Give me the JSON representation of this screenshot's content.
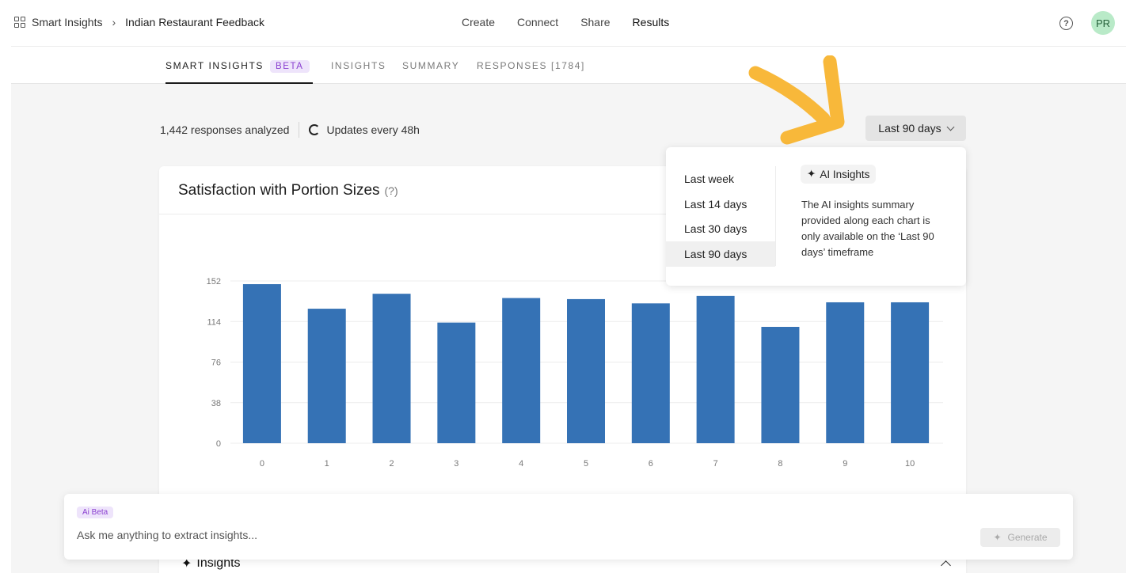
{
  "breadcrumb": {
    "root": "Smart Insights",
    "current": "Indian Restaurant Feedback"
  },
  "topnav": [
    "Create",
    "Connect",
    "Share",
    "Results"
  ],
  "user": {
    "initials": "PR"
  },
  "subtabs": {
    "smart": "SMART INSIGHTS",
    "beta": "BETA",
    "insights": "INSIGHTS",
    "summary": "SUMMARY",
    "responses": "RESPONSES [1784]"
  },
  "stats": {
    "analyzed": "1,442 responses analyzed",
    "updates": "Updates every 48h"
  },
  "range": {
    "selected": "Last 90 days",
    "options": [
      "Last week",
      "Last 14 days",
      "Last 30 days",
      "Last 90 days"
    ]
  },
  "ai_popup": {
    "chip": "AI Insights",
    "text": "The AI insights summary provided along each chart is only available on the ‘Last 90 days’ timeframe"
  },
  "card": {
    "title": "Satisfaction with Portion Sizes",
    "help": "(?)"
  },
  "chart_data": {
    "type": "bar",
    "categories": [
      "0",
      "1",
      "2",
      "3",
      "4",
      "5",
      "6",
      "7",
      "8",
      "9",
      "10"
    ],
    "values": [
      149,
      126,
      140,
      113,
      136,
      135,
      131,
      138,
      109,
      132,
      132
    ],
    "yticks": [
      0,
      38,
      76,
      114,
      152
    ],
    "ylim": [
      0,
      152
    ],
    "grid": true,
    "bar_color": "#3572b5"
  },
  "askbar": {
    "badge": "Ai Beta",
    "placeholder": "Ask me anything to extract insights...",
    "generate": "Generate"
  },
  "insights_section": {
    "label": "Insights"
  },
  "colors": {
    "accent_purple": "#8a3fd0",
    "arrow": "#f8b83a"
  }
}
